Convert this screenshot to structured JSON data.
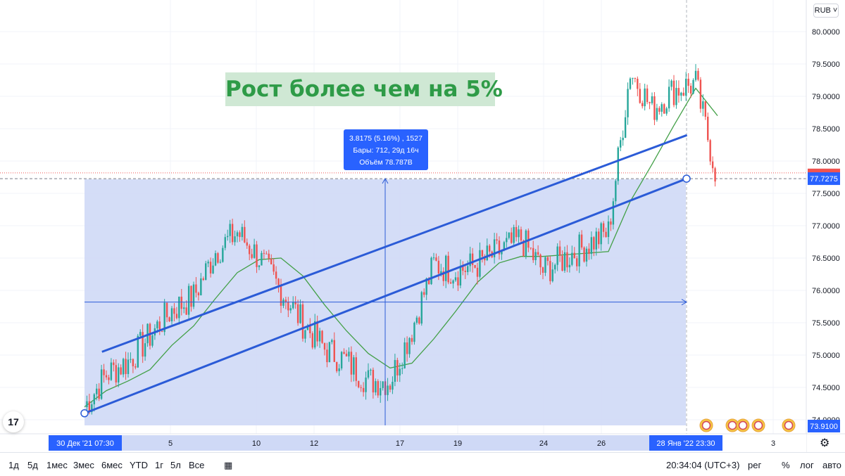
{
  "currency": "RUB",
  "annotation_text": "Рост более чем на 5%",
  "measure": {
    "line1": "3.8175 (5.16%) , 1527",
    "line2": "Бары: 712, 29д 16ч",
    "line3": "Объём 78.787B"
  },
  "logo_text": "17",
  "price_tags": {
    "current": "77.7275",
    "low": "73.9100"
  },
  "x_ticks_extra": [
    "3"
  ],
  "date_labels": {
    "start": "30 Дек '21   07:30",
    "end": "28 Янв '22   23:30"
  },
  "colors": {
    "up": "#26a69a",
    "down": "#ef5350",
    "channel": "#2b5bd7",
    "ma": "#43a047",
    "measure_fill": "#cfd9f6",
    "accent": "#2962ff"
  },
  "chart_data": {
    "type": "candlestick",
    "series": [
      {
        "name": "",
        "x": [
          "30",
          "31",
          "1",
          "2",
          "3",
          "4",
          "5",
          "6",
          "7",
          "8",
          "9",
          "10",
          "11",
          "12",
          "13",
          "14",
          "15",
          "16",
          "17",
          "18",
          "19",
          "20",
          "21",
          "22",
          "23",
          "24",
          "25",
          "26",
          "27",
          "28"
        ],
        "close": [
          74.2,
          74.7,
          74.9,
          75.3,
          75.7,
          75.9,
          76.6,
          76.9,
          76.5,
          76.0,
          75.5,
          75.1,
          74.9,
          74.6,
          74.6,
          75.4,
          76.4,
          76.3,
          76.4,
          76.6,
          76.8,
          76.3,
          76.5,
          76.7,
          76.9,
          79.4,
          78.8,
          79.1,
          79.2,
          77.7
        ]
      }
    ],
    "trend_channel": {
      "upper": [
        [
          0.8,
          75.05
        ],
        [
          27.6,
          78.4
        ]
      ],
      "lower": [
        [
          0.0,
          74.1
        ],
        [
          27.6,
          77.73
        ]
      ]
    },
    "measure_range": {
      "from": 73.91,
      "to": 77.7275,
      "change": 3.8175,
      "percent": 5.16
    },
    "x_ticks": [
      "5",
      "10",
      "12",
      "17",
      "19",
      "24",
      "26",
      "3"
    ],
    "y_ticks": [
      "80.0000",
      "79.5000",
      "79.0000",
      "78.5000",
      "78.0000",
      "77.5000",
      "77.0000",
      "76.5000",
      "76.0000",
      "75.5000",
      "75.0000",
      "74.5000",
      "74.0000"
    ],
    "ylim": [
      73.8,
      80.3
    ],
    "title": "",
    "xlabel": "",
    "ylabel": "",
    "grid": true
  },
  "bottom_bar": {
    "ranges": [
      "1д",
      "5д",
      "1мес",
      "3мес",
      "6мес",
      "YTD",
      "1г",
      "5л",
      "Все"
    ],
    "time": "20:34:04 (UTC+3)",
    "right_opts": [
      "рег",
      "%",
      "лог",
      "авто"
    ]
  }
}
